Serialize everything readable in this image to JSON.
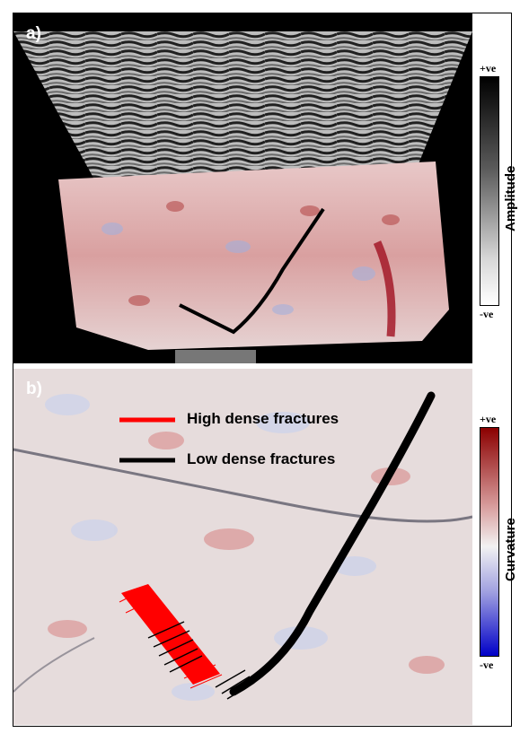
{
  "panel_a": {
    "label": "a)",
    "colorbar": {
      "top": "+ve",
      "bottom": "-ve",
      "title": "Amplitude",
      "colors": [
        "#000000",
        "#ffffff"
      ]
    }
  },
  "panel_b": {
    "label": "b)",
    "colorbar": {
      "top": "+ve",
      "bottom": "-ve",
      "title": "Curvature",
      "colors": [
        "#8b0000",
        "#f2f2f2",
        "#0000c8"
      ]
    },
    "legend": [
      {
        "label": "High dense fractures",
        "color": "#ff0000"
      },
      {
        "label": "Low dense fractures",
        "color": "#000000"
      }
    ]
  }
}
